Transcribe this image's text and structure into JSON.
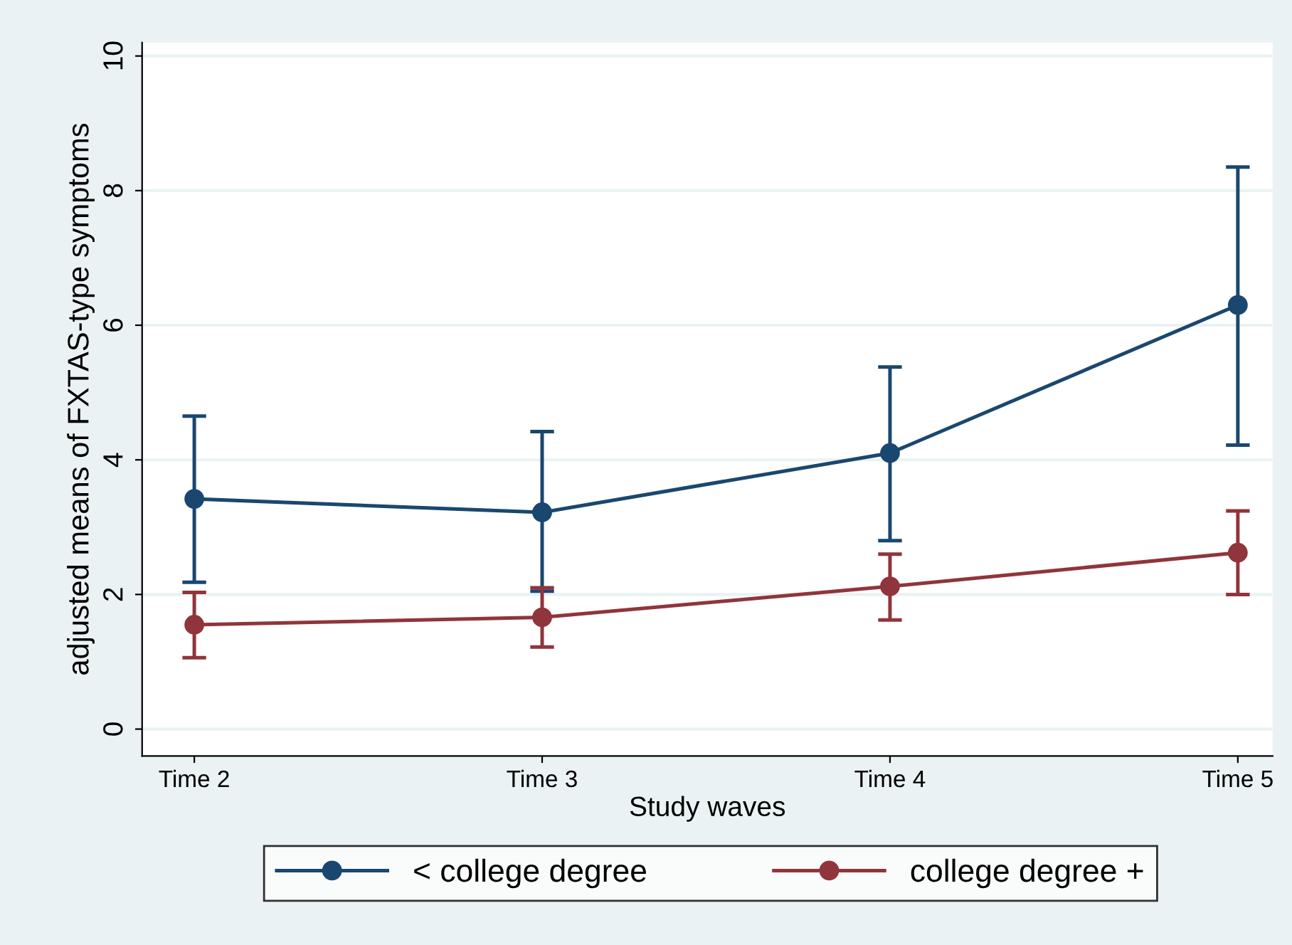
{
  "chart_data": {
    "type": "line",
    "xlabel": "Study waves",
    "ylabel": "adjusted means of FXTAS-type symptoms",
    "categories": [
      "Time 2",
      "Time 3",
      "Time 4",
      "Time 5"
    ],
    "ylim": [
      -0.4,
      10.2
    ],
    "yticks": [
      0,
      2,
      4,
      6,
      8,
      10
    ],
    "series": [
      {
        "name": "< college degree",
        "color": "#1a476f",
        "values": [
          3.42,
          3.22,
          4.1,
          6.3
        ],
        "errors": [
          [
            2.18,
            4.65
          ],
          [
            2.05,
            4.42
          ],
          [
            2.8,
            5.38
          ],
          [
            4.22,
            8.35
          ]
        ]
      },
      {
        "name": "college degree +",
        "color": "#90353b",
        "values": [
          1.55,
          1.66,
          2.12,
          2.62
        ],
        "errors": [
          [
            1.06,
            2.03
          ],
          [
            1.22,
            2.1
          ],
          [
            1.62,
            2.6
          ],
          [
            2.0,
            3.24
          ]
        ]
      }
    ],
    "marker": "circle",
    "line_style": "solid",
    "grid": "y",
    "legend": "bottom"
  }
}
